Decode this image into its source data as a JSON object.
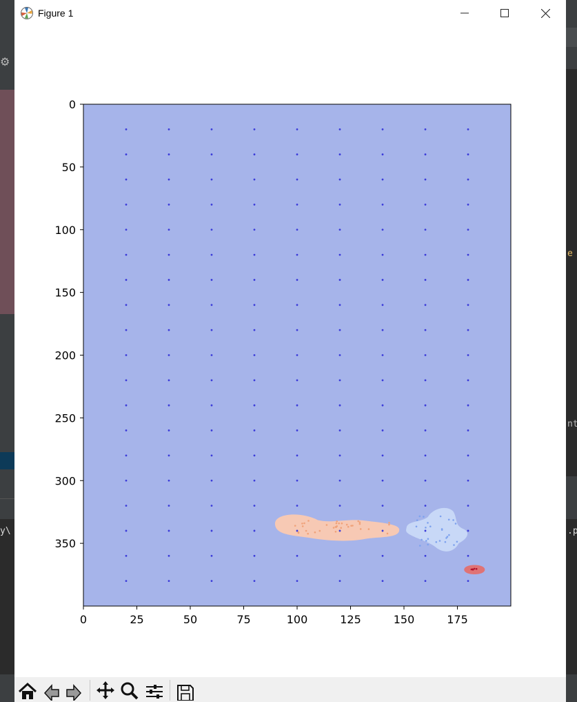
{
  "window": {
    "title": "Figure 1"
  },
  "toolbar": {
    "buttons": [
      "home-icon",
      "back-icon",
      "forward-icon",
      "pan-icon",
      "zoom-icon",
      "configure-subplots-icon",
      "save-icon"
    ]
  },
  "background": {
    "left_text": "y\\",
    "right_text_1": "e",
    "right_text_2": "nt",
    "right_text_3": ".p"
  },
  "chart_data": {
    "type": "heatmap",
    "title": "",
    "xlabel": "",
    "ylabel": "",
    "xlim": [
      0,
      200
    ],
    "ylim": [
      400,
      0
    ],
    "x_ticks": [
      0,
      25,
      50,
      75,
      100,
      125,
      150,
      175
    ],
    "y_ticks": [
      0,
      50,
      100,
      150,
      200,
      250,
      300,
      350
    ],
    "background_color": "#a6b4ea",
    "grid_points": {
      "x": [
        20,
        40,
        60,
        80,
        100,
        120,
        140,
        160,
        180
      ],
      "y": [
        20,
        40,
        60,
        80,
        100,
        120,
        140,
        160,
        180,
        200,
        220,
        240,
        260,
        280,
        300,
        320,
        340,
        360,
        380
      ],
      "color": "#3b3bd9"
    },
    "regions": [
      {
        "color": "#f7c9b4",
        "center": [
          121,
          337
        ],
        "points_color": "#f0a27a"
      },
      {
        "color": "#c8d8f7",
        "center": [
          166,
          340
        ],
        "points_color": "#7ea2ee"
      },
      {
        "color": "#df7375",
        "center": [
          183,
          371
        ],
        "points_color": "#b4122a"
      }
    ]
  }
}
